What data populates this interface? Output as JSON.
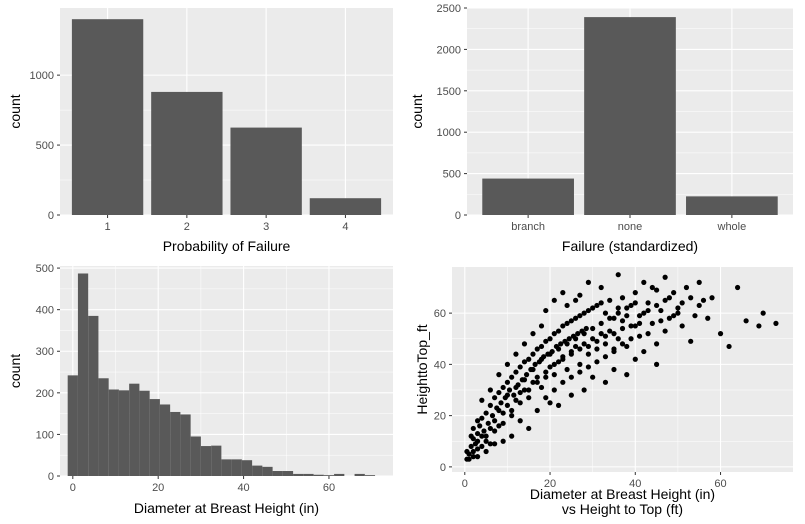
{
  "colors": {
    "panel_background": "#ebebeb",
    "grid_major": "#ffffff",
    "bar_fill": "#595959",
    "point_fill": "#000000",
    "tick_text": "#4d4d4d",
    "axis_title": "#000000"
  },
  "chart_data": [
    {
      "type": "bar",
      "xlabel": "Probability of Failure",
      "ylabel": "count",
      "categories": [
        "1",
        "2",
        "3",
        "4"
      ],
      "values": [
        1400,
        880,
        625,
        120
      ],
      "ylim": [
        0,
        1480
      ],
      "yticks": [
        0,
        500,
        1000
      ],
      "ytick_labels": [
        "0",
        "500",
        "1000"
      ],
      "grid": true
    },
    {
      "type": "bar",
      "xlabel": "Failure (standardized)",
      "ylabel": "count",
      "categories": [
        "branch",
        "none",
        "whole"
      ],
      "values": [
        440,
        2390,
        225
      ],
      "ylim": [
        0,
        2500
      ],
      "yticks": [
        0,
        500,
        1000,
        1500,
        2000,
        2500
      ],
      "ytick_labels": [
        "0",
        "500",
        "1000",
        "1500",
        "2000",
        "2500"
      ],
      "grid": true
    },
    {
      "type": "histogram",
      "xlabel": "Diameter at Breast Height (in)",
      "ylabel": "count",
      "bin_width": 2.4,
      "bin_centers": [
        0,
        2.4,
        4.8,
        7.2,
        9.6,
        12,
        14.4,
        16.8,
        19.2,
        21.6,
        24,
        26.4,
        28.8,
        31.2,
        33.6,
        36,
        38.4,
        40.8,
        43.2,
        45.6,
        48,
        50.4,
        52.8,
        55.2,
        57.6,
        60,
        62.4,
        64.8,
        67.2,
        69.6
      ],
      "values": [
        242,
        487,
        385,
        235,
        208,
        206,
        222,
        205,
        185,
        172,
        154,
        148,
        95,
        72,
        73,
        40,
        40,
        38,
        25,
        22,
        12,
        12,
        5,
        5,
        3,
        2,
        5,
        0,
        5,
        2
      ],
      "xlim": [
        -3,
        75
      ],
      "ylim": [
        0,
        505
      ],
      "xticks": [
        0,
        20,
        40,
        60
      ],
      "xtick_labels": [
        "0",
        "20",
        "40",
        "60"
      ],
      "yticks": [
        0,
        100,
        200,
        300,
        400,
        500
      ],
      "ytick_labels": [
        "0",
        "100",
        "200",
        "300",
        "400",
        "500"
      ],
      "grid": true
    },
    {
      "type": "scatter",
      "xlabel": "Diameter at Breast Height (in)",
      "xlabel_line2": "vs Height to Top (ft)",
      "ylabel": "HeighttoTop_ft",
      "xlim": [
        -3,
        77
      ],
      "ylim": [
        -2,
        78
      ],
      "xticks": [
        0,
        20,
        40,
        60
      ],
      "xtick_labels": [
        "0",
        "20",
        "40",
        "60"
      ],
      "yticks": [
        0,
        20,
        40,
        60
      ],
      "ytick_labels": [
        "0",
        "20",
        "40",
        "60"
      ],
      "grid": true,
      "points": [
        [
          0.5,
          3
        ],
        [
          1,
          5
        ],
        [
          1.5,
          8
        ],
        [
          2,
          6
        ],
        [
          2,
          11
        ],
        [
          2.5,
          9
        ],
        [
          3,
          13
        ],
        [
          3,
          7
        ],
        [
          3.5,
          16
        ],
        [
          4,
          12
        ],
        [
          4,
          19
        ],
        [
          4.5,
          14
        ],
        [
          5,
          21
        ],
        [
          5,
          10
        ],
        [
          5.5,
          17
        ],
        [
          6,
          24
        ],
        [
          6,
          15
        ],
        [
          6.5,
          20
        ],
        [
          7,
          27
        ],
        [
          7,
          18
        ],
        [
          7.5,
          23
        ],
        [
          8,
          29
        ],
        [
          8,
          16
        ],
        [
          8.5,
          25
        ],
        [
          9,
          31
        ],
        [
          9,
          21
        ],
        [
          9.5,
          27
        ],
        [
          10,
          33
        ],
        [
          10,
          24
        ],
        [
          10.5,
          30
        ],
        [
          11,
          35
        ],
        [
          11,
          22
        ],
        [
          11.5,
          28
        ],
        [
          12,
          37
        ],
        [
          12,
          26
        ],
        [
          12.5,
          32
        ],
        [
          13,
          39
        ],
        [
          13,
          29
        ],
        [
          13.5,
          34
        ],
        [
          14,
          41
        ],
        [
          14,
          30
        ],
        [
          14.5,
          36
        ],
        [
          15,
          42
        ],
        [
          15,
          27
        ],
        [
          15.5,
          38
        ],
        [
          16,
          44
        ],
        [
          16,
          33
        ],
        [
          16.5,
          40
        ],
        [
          17,
          46
        ],
        [
          17,
          35
        ],
        [
          17.5,
          41
        ],
        [
          18,
          47
        ],
        [
          18,
          31
        ],
        [
          18.5,
          43
        ],
        [
          19,
          49
        ],
        [
          19,
          37
        ],
        [
          19.5,
          44
        ],
        [
          20,
          50
        ],
        [
          20,
          39
        ],
        [
          20.5,
          45
        ],
        [
          21,
          52
        ],
        [
          21,
          36
        ],
        [
          21.5,
          47
        ],
        [
          22,
          53
        ],
        [
          22,
          41
        ],
        [
          22.5,
          48
        ],
        [
          23,
          55
        ],
        [
          23,
          43
        ],
        [
          23.5,
          49
        ],
        [
          24,
          56
        ],
        [
          24,
          38
        ],
        [
          24.5,
          50
        ],
        [
          25,
          57
        ],
        [
          25,
          45
        ],
        [
          25.5,
          51
        ],
        [
          26,
          58
        ],
        [
          26,
          47
        ],
        [
          26.5,
          52
        ],
        [
          27,
          59
        ],
        [
          27,
          40
        ],
        [
          27.5,
          53
        ],
        [
          28,
          60
        ],
        [
          28,
          48
        ],
        [
          28.5,
          54
        ],
        [
          29,
          61
        ],
        [
          29,
          44
        ],
        [
          30,
          62
        ],
        [
          30,
          50
        ],
        [
          31,
          63
        ],
        [
          31,
          46
        ],
        [
          32,
          64
        ],
        [
          32,
          52
        ],
        [
          33,
          60
        ],
        [
          33,
          48
        ],
        [
          34,
          65
        ],
        [
          34,
          53
        ],
        [
          35,
          58
        ],
        [
          35,
          45
        ],
        [
          36,
          62
        ],
        [
          36,
          50
        ],
        [
          37,
          66
        ],
        [
          37,
          54
        ],
        [
          38,
          59
        ],
        [
          38,
          47
        ],
        [
          39,
          63
        ],
        [
          40,
          55
        ],
        [
          40,
          68
        ],
        [
          41,
          51
        ],
        [
          42,
          60
        ],
        [
          42,
          45
        ],
        [
          43,
          64
        ],
        [
          44,
          56
        ],
        [
          45,
          69
        ],
        [
          45,
          48
        ],
        [
          46,
          61
        ],
        [
          47,
          53
        ],
        [
          48,
          66
        ],
        [
          48,
          58
        ],
        [
          50,
          62
        ],
        [
          51,
          55
        ],
        [
          52,
          70
        ],
        [
          53,
          49
        ],
        [
          55,
          63
        ],
        [
          57,
          58
        ],
        [
          58,
          66
        ],
        [
          60,
          52
        ],
        [
          62,
          47
        ],
        [
          64,
          70
        ],
        [
          66,
          57
        ],
        [
          69,
          55
        ],
        [
          70,
          60
        ],
        [
          73,
          56
        ],
        [
          30,
          35
        ],
        [
          28,
          30
        ],
        [
          25,
          28
        ],
        [
          22,
          24
        ],
        [
          35,
          38
        ],
        [
          33,
          33
        ],
        [
          40,
          42
        ],
        [
          38,
          36
        ],
        [
          45,
          40
        ],
        [
          26,
          65
        ],
        [
          29,
          72
        ],
        [
          27,
          67
        ],
        [
          32,
          70
        ],
        [
          36,
          75
        ],
        [
          24,
          63
        ],
        [
          18,
          55
        ],
        [
          16,
          52
        ],
        [
          14,
          48
        ],
        [
          12,
          44
        ],
        [
          10,
          40
        ],
        [
          8,
          36
        ],
        [
          6,
          30
        ],
        [
          4,
          26
        ],
        [
          19,
          61
        ],
        [
          21,
          65
        ],
        [
          23,
          68
        ],
        [
          42,
          72
        ],
        [
          44,
          70
        ],
        [
          47,
          74
        ],
        [
          49,
          68
        ],
        [
          55,
          72
        ],
        [
          15,
          15
        ],
        [
          13,
          18
        ],
        [
          17,
          22
        ],
        [
          11,
          12
        ],
        [
          9,
          10
        ],
        [
          20,
          25
        ],
        [
          7,
          9
        ],
        [
          5,
          6
        ],
        [
          3,
          4
        ],
        [
          1,
          3
        ],
        [
          2,
          4
        ],
        [
          4,
          8
        ],
        [
          6,
          9
        ],
        [
          0.5,
          6
        ],
        [
          1.5,
          12
        ],
        [
          3,
          18
        ],
        [
          2,
          15
        ],
        [
          8,
          22
        ],
        [
          10,
          28
        ],
        [
          12,
          31
        ],
        [
          14,
          34
        ],
        [
          16,
          38
        ],
        [
          18,
          42
        ],
        [
          20,
          44
        ],
        [
          22,
          46
        ],
        [
          24,
          48
        ],
        [
          26,
          50
        ],
        [
          28,
          52
        ],
        [
          30,
          54
        ],
        [
          32,
          56
        ],
        [
          34,
          58
        ],
        [
          36,
          60
        ],
        [
          38,
          62
        ],
        [
          40,
          64
        ],
        [
          19,
          27
        ],
        [
          21,
          30
        ],
        [
          23,
          33
        ],
        [
          25,
          35
        ],
        [
          27,
          37
        ],
        [
          29,
          39
        ],
        [
          31,
          41
        ],
        [
          33,
          43
        ],
        [
          35,
          46
        ],
        [
          37,
          48
        ],
        [
          39,
          50
        ],
        [
          41,
          56
        ],
        [
          43,
          52
        ],
        [
          46,
          57
        ],
        [
          50,
          60
        ],
        [
          54,
          59
        ],
        [
          56,
          65
        ],
        [
          15,
          30
        ],
        [
          13,
          25
        ],
        [
          11,
          20
        ],
        [
          9,
          17
        ],
        [
          7,
          14
        ],
        [
          5,
          12
        ],
        [
          3,
          10
        ],
        [
          17,
          33
        ],
        [
          19,
          35
        ],
        [
          21,
          40
        ],
        [
          23,
          42
        ],
        [
          25,
          44
        ],
        [
          27,
          46
        ],
        [
          29,
          47
        ],
        [
          31,
          49
        ],
        [
          33,
          51
        ],
        [
          35,
          52
        ],
        [
          37,
          57
        ],
        [
          39,
          55
        ],
        [
          41,
          59
        ],
        [
          43,
          61
        ],
        [
          45,
          63
        ],
        [
          47,
          65
        ],
        [
          49,
          59
        ],
        [
          51,
          64
        ],
        [
          53,
          66
        ]
      ]
    }
  ]
}
